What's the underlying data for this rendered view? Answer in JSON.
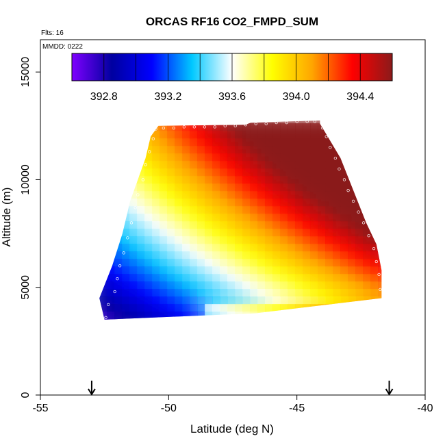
{
  "chart_data": {
    "type": "heatmap",
    "title": "ORCAS RF16 CO2_FMPD_SUM",
    "flights_label": "Flts: 16",
    "date_label": "MMDD: 0222",
    "xlabel": "Latitude (deg N)",
    "ylabel": "Altitude (m)",
    "xlim": [
      -55,
      -40
    ],
    "ylim": [
      0,
      16500
    ],
    "x_ticks": [
      -55,
      -50,
      -45,
      -40
    ],
    "x_tick_labels": [
      "-55",
      "-50",
      "-45",
      "-40"
    ],
    "y_ticks": [
      0,
      5000,
      10000,
      15000
    ],
    "y_tick_labels": [
      "0",
      "5000",
      "10000",
      "15000"
    ],
    "colorbar": {
      "min": 392.6,
      "max": 394.6,
      "ticks": [
        392.8,
        393.2,
        393.6,
        394.0,
        394.4
      ],
      "tick_labels": [
        "392.8",
        "393.2",
        "393.6",
        "394.0",
        "394.4"
      ],
      "colors": [
        "#7f00ff",
        "#0000a0",
        "#0000ff",
        "#00c8ff",
        "#ffffff",
        "#ffff00",
        "#ffa500",
        "#ff0000",
        "#8b1a1a"
      ]
    },
    "arrows_lat": [
      -53,
      -41.4
    ],
    "envelope_left": [
      [
        3500,
        -52.5
      ],
      [
        4500,
        -52.7
      ],
      [
        6000,
        -52.2
      ],
      [
        7500,
        -51.8
      ],
      [
        9000,
        -51.5
      ],
      [
        10000,
        -51.2
      ],
      [
        11000,
        -50.9
      ],
      [
        12000,
        -50.7
      ],
      [
        12500,
        -50.4
      ]
    ],
    "envelope_right": [
      [
        3800,
        -46.6
      ],
      [
        4500,
        -41.7
      ],
      [
        5800,
        -41.7
      ],
      [
        7000,
        -41.9
      ],
      [
        8000,
        -42.3
      ],
      [
        9500,
        -42.8
      ],
      [
        11000,
        -43.3
      ],
      [
        12000,
        -43.8
      ],
      [
        12600,
        -44.1
      ]
    ],
    "top_edge": [
      [
        -50.4,
        12500
      ],
      [
        -47,
        12550
      ],
      [
        -46.8,
        12650
      ],
      [
        -44.1,
        12750
      ]
    ],
    "sample_points": [
      [
        -52.45,
        3600
      ],
      [
        -52.35,
        4200
      ],
      [
        -52.1,
        4800
      ],
      [
        -52.0,
        5400
      ],
      [
        -51.9,
        6000
      ],
      [
        -51.75,
        6600
      ],
      [
        -51.6,
        7300
      ],
      [
        -51.45,
        8000
      ],
      [
        -51.3,
        8700
      ],
      [
        -51.2,
        9300
      ],
      [
        -51.0,
        10000
      ],
      [
        -50.9,
        10700
      ],
      [
        -50.75,
        11300
      ],
      [
        -50.6,
        11900
      ],
      [
        -50.5,
        12350
      ],
      [
        -50.2,
        12400
      ],
      [
        -49.8,
        12400
      ],
      [
        -49.4,
        12450
      ],
      [
        -49.0,
        12450
      ],
      [
        -48.6,
        12450
      ],
      [
        -48.2,
        12450
      ],
      [
        -47.8,
        12500
      ],
      [
        -47.4,
        12500
      ],
      [
        -47.0,
        12550
      ],
      [
        -46.6,
        12600
      ],
      [
        -46.2,
        12600
      ],
      [
        -45.8,
        12650
      ],
      [
        -45.4,
        12650
      ],
      [
        -45.0,
        12700
      ],
      [
        -44.6,
        12700
      ],
      [
        -44.3,
        12700
      ],
      [
        -44.0,
        12400
      ],
      [
        -43.85,
        12000
      ],
      [
        -43.7,
        11500
      ],
      [
        -43.5,
        11000
      ],
      [
        -43.35,
        10500
      ],
      [
        -43.15,
        10000
      ],
      [
        -43.0,
        9500
      ],
      [
        -42.8,
        9000
      ],
      [
        -42.6,
        8500
      ],
      [
        -42.4,
        8000
      ],
      [
        -42.2,
        7400
      ],
      [
        -42.0,
        6800
      ],
      [
        -41.9,
        6200
      ],
      [
        -41.8,
        5600
      ],
      [
        -41.75,
        4900
      ]
    ]
  }
}
